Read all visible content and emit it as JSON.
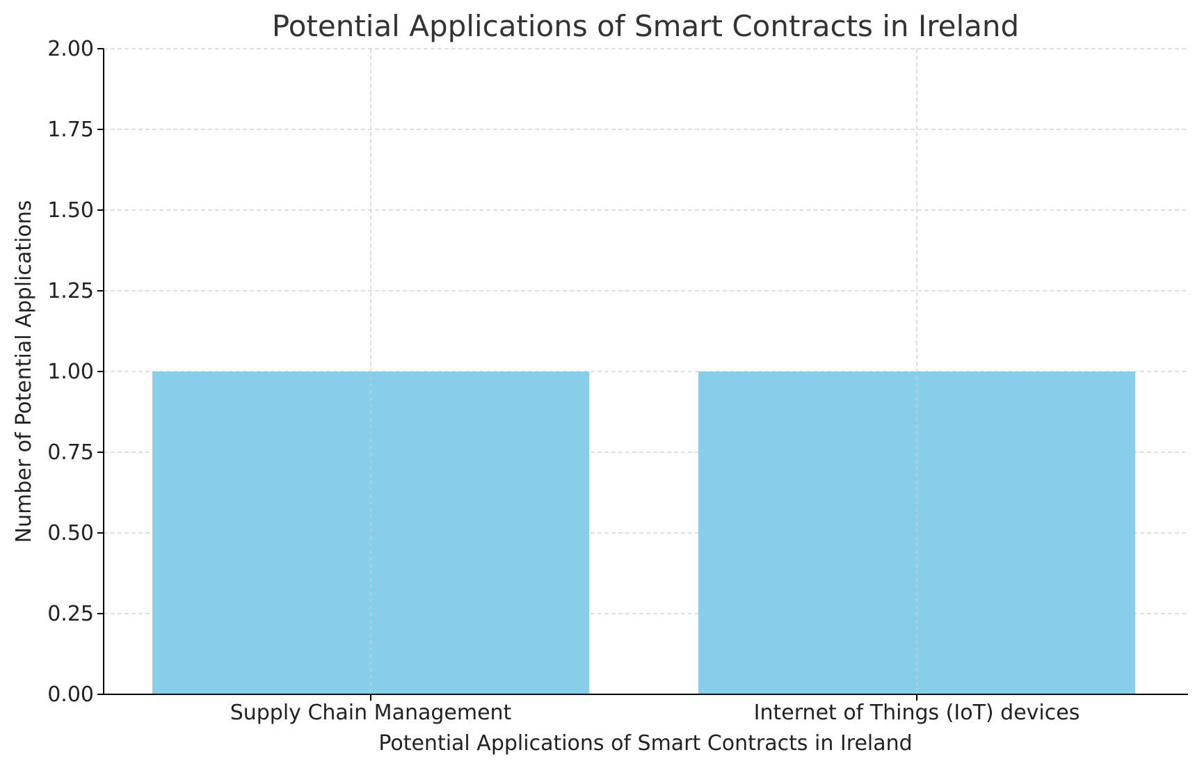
{
  "chart_data": {
    "type": "bar",
    "title": "Potential Applications of Smart Contracts in Ireland",
    "xlabel": "Potential Applications of Smart Contracts in Ireland",
    "ylabel": "Number of Potential Applications",
    "categories": [
      "Supply Chain Management",
      "Internet of Things (IoT) devices"
    ],
    "values": [
      1,
      1
    ],
    "ylim": [
      0,
      2
    ],
    "yticks": [
      "0.00",
      "0.25",
      "0.50",
      "0.75",
      "1.00",
      "1.25",
      "1.50",
      "1.75",
      "2.00"
    ],
    "bar_color": "#87CEEB",
    "grid": true
  }
}
